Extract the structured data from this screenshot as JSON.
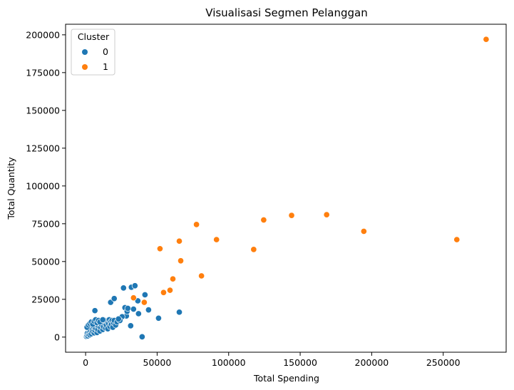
{
  "chart_data": {
    "type": "scatter",
    "title": "Visualisasi Segmen Pelanggan",
    "xlabel": "Total Spending",
    "ylabel": "Total Quantity",
    "xlim": [
      -14000,
      294000
    ],
    "ylim": [
      -10000,
      207000
    ],
    "xticks": [
      0,
      50000,
      100000,
      150000,
      200000,
      250000
    ],
    "yticks": [
      0,
      25000,
      50000,
      75000,
      100000,
      125000,
      150000,
      175000,
      200000
    ],
    "grid": false,
    "legend": {
      "title": "Cluster",
      "placement": "top-left"
    },
    "series": [
      {
        "name": "0",
        "color": "#1f77b4",
        "points": [
          [
            500,
            500
          ],
          [
            800,
            1200
          ],
          [
            1200,
            2500
          ],
          [
            1500,
            800
          ],
          [
            2000,
            1800
          ],
          [
            2500,
            3000
          ],
          [
            3000,
            1500
          ],
          [
            3500,
            4000
          ],
          [
            4000,
            2200
          ],
          [
            4500,
            5500
          ],
          [
            5000,
            3500
          ],
          [
            5500,
            7000
          ],
          [
            6000,
            2800
          ],
          [
            6500,
            4500
          ],
          [
            7000,
            6000
          ],
          [
            7500,
            8000
          ],
          [
            8000,
            3000
          ],
          [
            8500,
            5000
          ],
          [
            9000,
            7500
          ],
          [
            9500,
            9000
          ],
          [
            10000,
            4000
          ],
          [
            10500,
            6500
          ],
          [
            11000,
            8500
          ],
          [
            11500,
            10000
          ],
          [
            12000,
            5000
          ],
          [
            12500,
            7000
          ],
          [
            13000,
            9500
          ],
          [
            13500,
            11000
          ],
          [
            14000,
            6000
          ],
          [
            14500,
            8000
          ],
          [
            15000,
            10500
          ],
          [
            15500,
            5500
          ],
          [
            16000,
            9000
          ],
          [
            16500,
            11500
          ],
          [
            17000,
            7000
          ],
          [
            17500,
            10000
          ],
          [
            18000,
            8500
          ],
          [
            18500,
            11000
          ],
          [
            19000,
            6500
          ],
          [
            19500,
            9500
          ],
          [
            20000,
            11000
          ],
          [
            21000,
            8000
          ],
          [
            22000,
            10000
          ],
          [
            1000,
            6500
          ],
          [
            2000,
            8000
          ],
          [
            3000,
            9000
          ],
          [
            4000,
            10000
          ],
          [
            5000,
            8500
          ],
          [
            6000,
            10500
          ],
          [
            7000,
            11500
          ],
          [
            8000,
            9500
          ],
          [
            9000,
            11000
          ],
          [
            10000,
            10000
          ],
          [
            12000,
            11500
          ],
          [
            6500,
            17500
          ],
          [
            17500,
            23000
          ],
          [
            20000,
            25500
          ],
          [
            26500,
            32500
          ],
          [
            27500,
            19500
          ],
          [
            28500,
            14000
          ],
          [
            29000,
            17000
          ],
          [
            29500,
            19000
          ],
          [
            31500,
            7500
          ],
          [
            32000,
            33000
          ],
          [
            33500,
            18500
          ],
          [
            34500,
            34000
          ],
          [
            36500,
            24000
          ],
          [
            37000,
            15500
          ],
          [
            39500,
            200
          ],
          [
            41500,
            28000
          ],
          [
            44000,
            18000
          ],
          [
            51000,
            12500
          ],
          [
            65500,
            16500
          ],
          [
            25500,
            13500
          ],
          [
            24000,
            11000
          ],
          [
            23000,
            12000
          ]
        ]
      },
      {
        "name": "1",
        "color": "#ff7f0e",
        "points": [
          [
            280000,
            197000
          ],
          [
            259500,
            64500
          ],
          [
            194500,
            70000
          ],
          [
            168500,
            81000
          ],
          [
            144000,
            80500
          ],
          [
            124500,
            77500
          ],
          [
            117500,
            58000
          ],
          [
            91500,
            64500
          ],
          [
            77500,
            74500
          ],
          [
            66500,
            50500
          ],
          [
            65500,
            63500
          ],
          [
            52000,
            58500
          ],
          [
            61000,
            38500
          ],
          [
            81000,
            40500
          ],
          [
            59000,
            31000
          ],
          [
            54500,
            29500
          ],
          [
            41000,
            23000
          ],
          [
            33500,
            26000
          ]
        ]
      }
    ]
  }
}
